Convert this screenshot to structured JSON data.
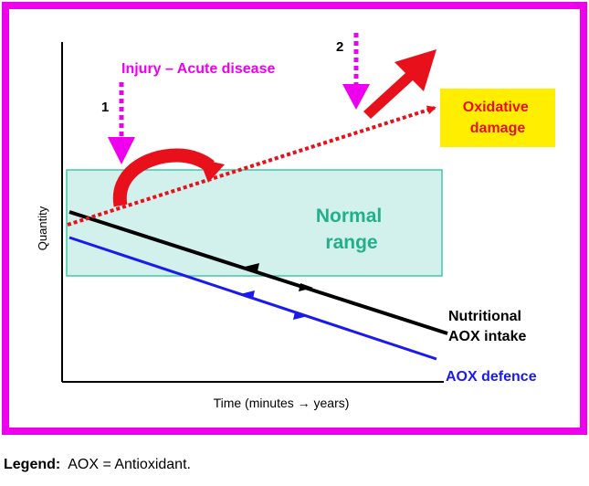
{
  "diagram": {
    "y_axis_label": "Quantity",
    "x_axis_label": "Time (minutes → years)",
    "injury_label": "Injury – Acute disease",
    "marker_1": "1",
    "marker_2": "2",
    "normal_range_line1": "Normal",
    "normal_range_line2": "range",
    "oxidative_line1": "Oxidative",
    "oxidative_line2": "damage",
    "nutritional_line1": "Nutritional",
    "nutritional_line2": "AOX intake",
    "aox_defence": "AOX defence",
    "colors": {
      "frame": "#ee00ee",
      "injury_text": "#ee00ee",
      "normal_range_fill": "#d2f0ec",
      "normal_range_border": "#40c8a8",
      "normal_range_text": "#20b08a",
      "oxidative_line": "#e8101a",
      "oxidative_box": "#ffee00",
      "nutritional_line": "#000000",
      "aox_defence_line": "#1a1aee"
    }
  },
  "legend": {
    "label": "Legend:",
    "text": "AOX = Antioxidant."
  }
}
